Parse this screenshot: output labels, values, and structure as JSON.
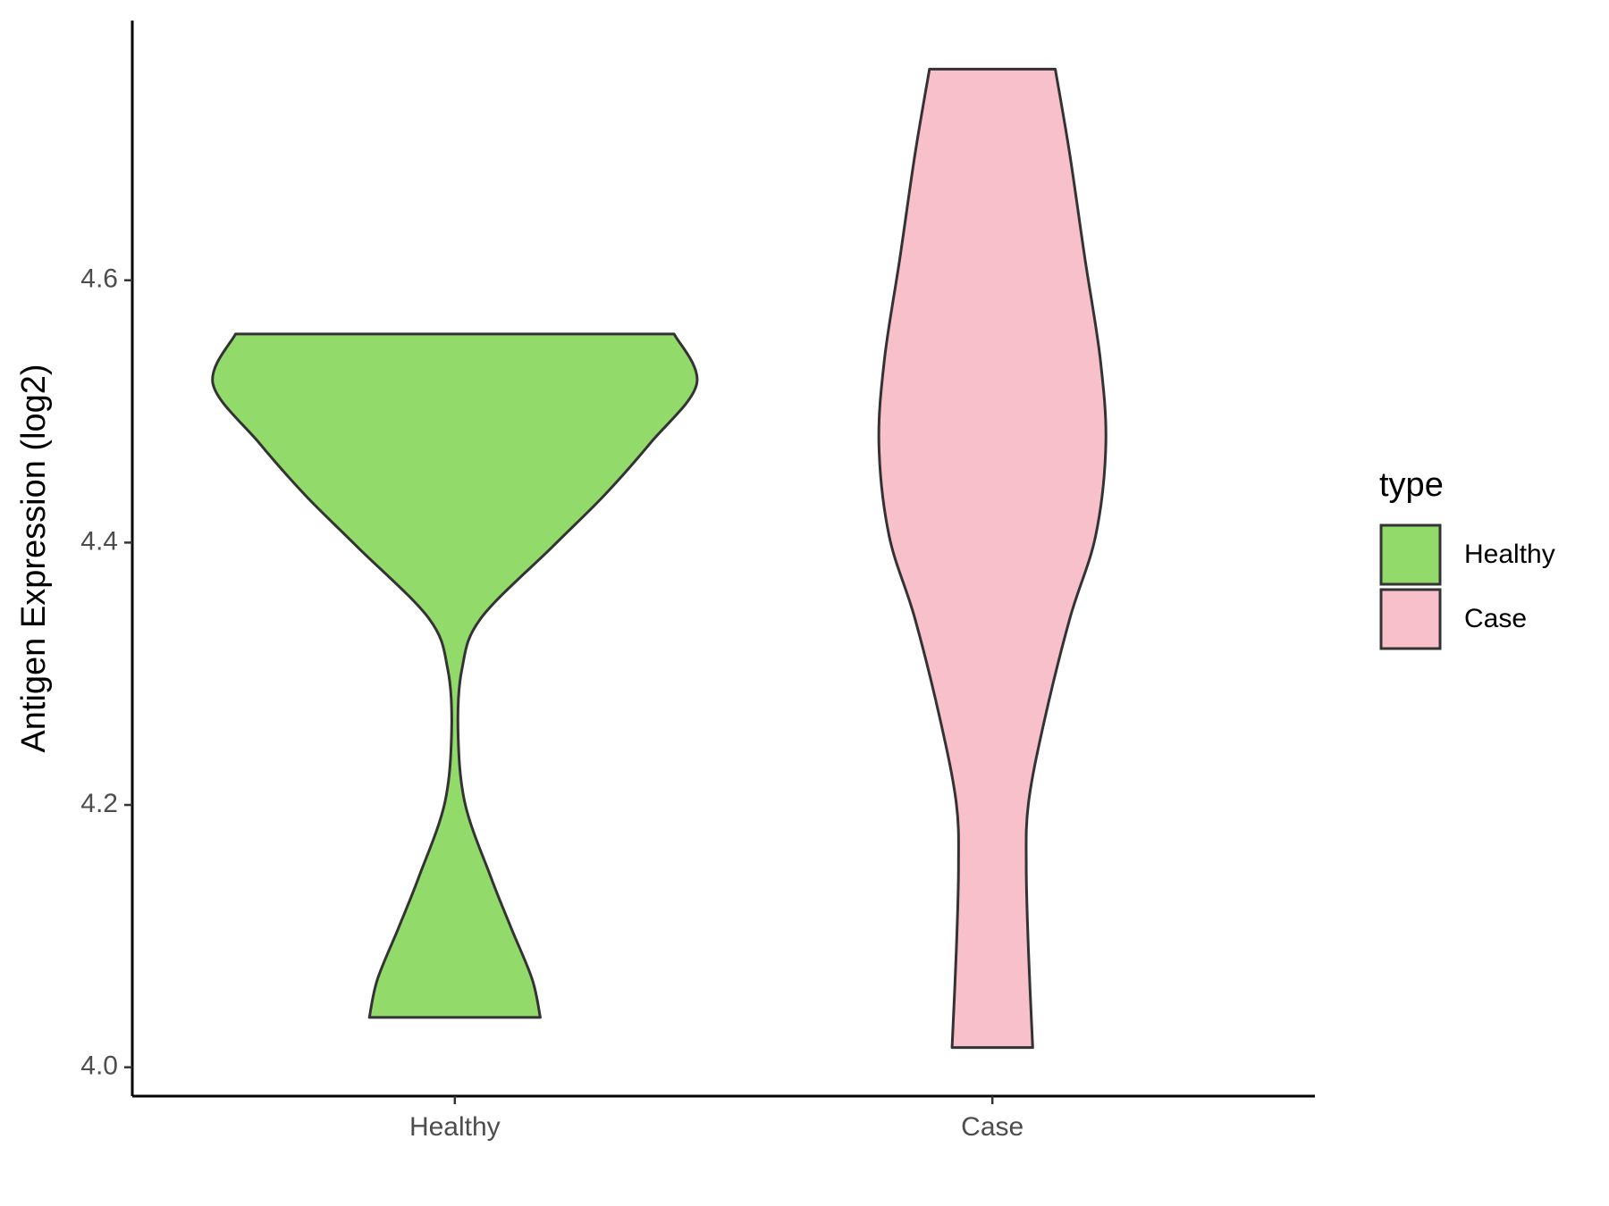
{
  "chart_data": {
    "type": "violin",
    "y_label": "Antigen Expression (log2)",
    "categories": [
      "Healthy",
      "Case"
    ],
    "legend_title": "type",
    "legend_position": "right",
    "ylim": [
      3.978,
      4.798
    ],
    "yticks": [
      {
        "value": 4.0,
        "label": "4.0"
      },
      4.2,
      4.4,
      4.6
    ],
    "series": [
      {
        "name": "Healthy",
        "color": "#92db6a",
        "y": [
          4.559,
          4.521,
          4.476,
          4.436,
          4.397,
          4.342,
          4.303,
          4.256,
          4.201,
          4.145,
          4.106,
          4.067,
          4.038
        ],
        "width": [
          0.408,
          0.45,
          0.364,
          0.278,
          0.182,
          0.048,
          0.013,
          0.006,
          0.019,
          0.067,
          0.105,
          0.144,
          0.159
        ]
      },
      {
        "name": "Case",
        "color": "#f7c0cb",
        "y": [
          4.761,
          4.696,
          4.617,
          4.539,
          4.474,
          4.405,
          4.342,
          4.263,
          4.201,
          4.153,
          4.09,
          4.015
        ],
        "width": [
          0.117,
          0.144,
          0.172,
          0.201,
          0.211,
          0.192,
          0.144,
          0.096,
          0.067,
          0.063,
          0.067,
          0.075
        ]
      }
    ]
  }
}
